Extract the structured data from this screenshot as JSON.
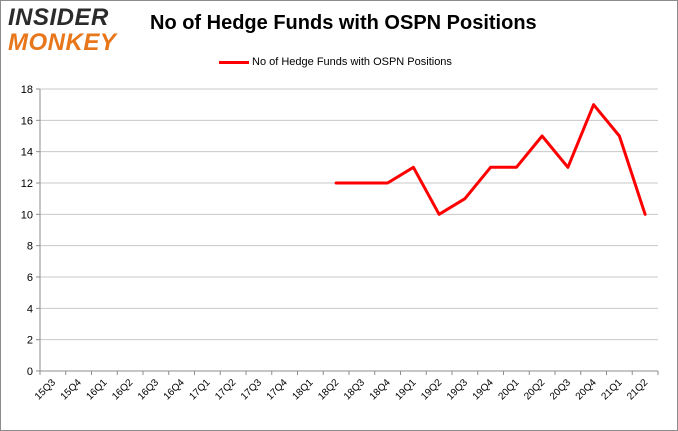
{
  "logo": {
    "line1": "INSIDER",
    "line2": "MONKEY"
  },
  "chart_data": {
    "type": "line",
    "title": "No of Hedge Funds with OSPN Positions",
    "xlabel": "",
    "ylabel": "",
    "categories": [
      "15Q3",
      "15Q4",
      "16Q1",
      "16Q2",
      "16Q3",
      "16Q4",
      "17Q1",
      "17Q2",
      "17Q3",
      "17Q4",
      "18Q1",
      "18Q2",
      "18Q3",
      "18Q4",
      "19Q1",
      "19Q2",
      "19Q3",
      "19Q4",
      "20Q1",
      "20Q2",
      "20Q3",
      "20Q4",
      "21Q1",
      "21Q2"
    ],
    "series": [
      {
        "name": "No of Hedge Funds with OSPN Positions",
        "color": "#ff0000",
        "values": [
          null,
          null,
          null,
          null,
          null,
          null,
          null,
          null,
          null,
          null,
          null,
          12,
          12,
          12,
          13,
          10,
          11,
          13,
          13,
          15,
          13,
          17,
          15,
          10
        ]
      }
    ],
    "ylim": [
      0,
      18
    ],
    "yticks": [
      0,
      2,
      4,
      6,
      8,
      10,
      12,
      14,
      16,
      18
    ],
    "grid": true,
    "legend_position": "top-center",
    "colors": {
      "line": "#ff0000",
      "grid": "#c8c8c8",
      "axis": "#8c8c8c"
    }
  }
}
